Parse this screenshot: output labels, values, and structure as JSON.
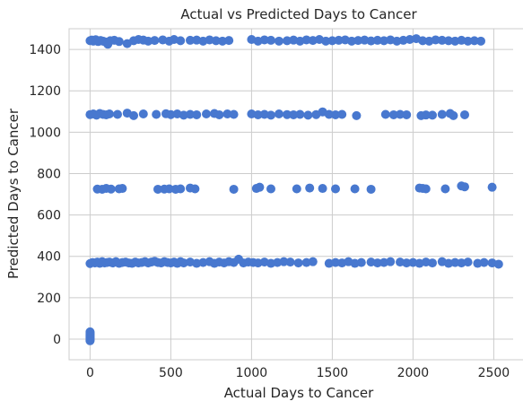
{
  "chart_data": {
    "type": "scatter",
    "title": "Actual vs Predicted Days to Cancer",
    "xlabel": "Actual Days to Cancer",
    "ylabel": "Predicted Days to Cancer",
    "xlim": [
      -130,
      2620
    ],
    "ylim": [
      -100,
      1500
    ],
    "xticks": [
      0,
      500,
      1000,
      1500,
      2000,
      2500
    ],
    "yticks": [
      0,
      200,
      400,
      600,
      800,
      1000,
      1200,
      1400
    ],
    "grid": true,
    "legend": "none",
    "marker_color": "#4878cf",
    "clusters": [
      {
        "level": 1442,
        "x": [
          0,
          10,
          20,
          35,
          50,
          65,
          80,
          95,
          110,
          125,
          150,
          180,
          230,
          270,
          300,
          330,
          360,
          400,
          450,
          490,
          520,
          560,
          620,
          660,
          700,
          740,
          780,
          820,
          860,
          1000,
          1040,
          1080,
          1120,
          1170,
          1220,
          1260,
          1300,
          1340,
          1380,
          1420,
          1460,
          1500,
          1540,
          1580,
          1620,
          1660,
          1700,
          1740,
          1780,
          1820,
          1860,
          1900,
          1940,
          1980,
          2020,
          2060,
          2100,
          2140,
          2180,
          2220,
          2260,
          2300,
          2340,
          2380,
          2420
        ],
        "y": [
          1442,
          1445,
          1440,
          1447,
          1438,
          1443,
          1440,
          1436,
          1425,
          1442,
          1444,
          1438,
          1428,
          1442,
          1448,
          1445,
          1440,
          1443,
          1446,
          1440,
          1448,
          1442,
          1444,
          1445,
          1440,
          1446,
          1442,
          1440,
          1443,
          1448,
          1440,
          1446,
          1444,
          1440,
          1442,
          1445,
          1440,
          1446,
          1443,
          1448,
          1440,
          1442,
          1444,
          1446,
          1440,
          1443,
          1445,
          1441,
          1444,
          1442,
          1446,
          1440,
          1444,
          1448,
          1452,
          1442,
          1440,
          1446,
          1444,
          1442,
          1440,
          1444,
          1440,
          1442,
          1440
        ]
      },
      {
        "level": 1085,
        "x": [
          0,
          20,
          40,
          60,
          80,
          100,
          120,
          170,
          230,
          270,
          330,
          410,
          470,
          500,
          540,
          580,
          620,
          660,
          720,
          770,
          800,
          850,
          890,
          1000,
          1040,
          1080,
          1120,
          1170,
          1220,
          1260,
          1300,
          1350,
          1400,
          1440,
          1480,
          1520,
          1560,
          1650,
          1830,
          1880,
          1920,
          1960,
          2050,
          2080,
          2120,
          2180,
          2230,
          2250,
          2320
        ],
        "y": [
          1085,
          1088,
          1082,
          1090,
          1086,
          1084,
          1088,
          1086,
          1092,
          1080,
          1088,
          1086,
          1089,
          1085,
          1088,
          1082,
          1086,
          1084,
          1088,
          1090,
          1084,
          1088,
          1086,
          1088,
          1084,
          1086,
          1082,
          1088,
          1085,
          1084,
          1086,
          1082,
          1085,
          1098,
          1086,
          1084,
          1086,
          1080,
          1086,
          1084,
          1086,
          1084,
          1080,
          1083,
          1082,
          1086,
          1090,
          1080,
          1084
        ]
      },
      {
        "level": 725,
        "x": [
          45,
          75,
          100,
          130,
          180,
          200,
          420,
          460,
          490,
          530,
          560,
          620,
          650,
          890,
          1030,
          1050,
          1120,
          1280,
          1360,
          1440,
          1520,
          1640,
          1740,
          2040,
          2060,
          2080,
          2200,
          2300,
          2320,
          2490
        ],
        "y": [
          725,
          724,
          728,
          725,
          726,
          728,
          724,
          725,
          726,
          724,
          726,
          730,
          726,
          724,
          728,
          734,
          726,
          726,
          730,
          728,
          726,
          726,
          724,
          730,
          728,
          726,
          726,
          740,
          736,
          734
        ]
      },
      {
        "level": 370,
        "x": [
          0,
          15,
          30,
          45,
          60,
          75,
          90,
          105,
          120,
          140,
          160,
          180,
          200,
          220,
          240,
          260,
          280,
          300,
          320,
          340,
          360,
          380,
          400,
          420,
          440,
          460,
          480,
          500,
          520,
          540,
          560,
          580,
          620,
          660,
          700,
          740,
          770,
          800,
          830,
          860,
          890,
          920,
          950,
          980,
          1010,
          1040,
          1080,
          1120,
          1160,
          1200,
          1240,
          1290,
          1340,
          1380,
          1480,
          1520,
          1560,
          1600,
          1640,
          1680,
          1740,
          1780,
          1820,
          1860,
          1920,
          1960,
          2000,
          2040,
          2080,
          2120,
          2180,
          2220,
          2260,
          2300,
          2340,
          2400,
          2440,
          2490,
          2530
        ],
        "y": [
          365,
          370,
          368,
          372,
          366,
          374,
          368,
          370,
          372,
          368,
          374,
          366,
          370,
          372,
          368,
          366,
          372,
          368,
          370,
          374,
          368,
          372,
          376,
          370,
          368,
          374,
          370,
          368,
          372,
          366,
          374,
          368,
          372,
          366,
          370,
          374,
          366,
          372,
          368,
          374,
          370,
          386,
          368,
          372,
          370,
          368,
          372,
          366,
          370,
          374,
          372,
          368,
          370,
          374,
          366,
          370,
          368,
          374,
          366,
          370,
          372,
          368,
          370,
          374,
          372,
          368,
          370,
          366,
          372,
          368,
          374,
          366,
          370,
          368,
          372,
          366,
          370,
          368,
          362
        ]
      },
      {
        "level": 0,
        "x": [
          0,
          0,
          0,
          0,
          0,
          0,
          0,
          0,
          0,
          0,
          0,
          0
        ],
        "y": [
          -8,
          -4,
          0,
          4,
          8,
          12,
          16,
          20,
          24,
          28,
          32,
          35
        ]
      }
    ]
  }
}
